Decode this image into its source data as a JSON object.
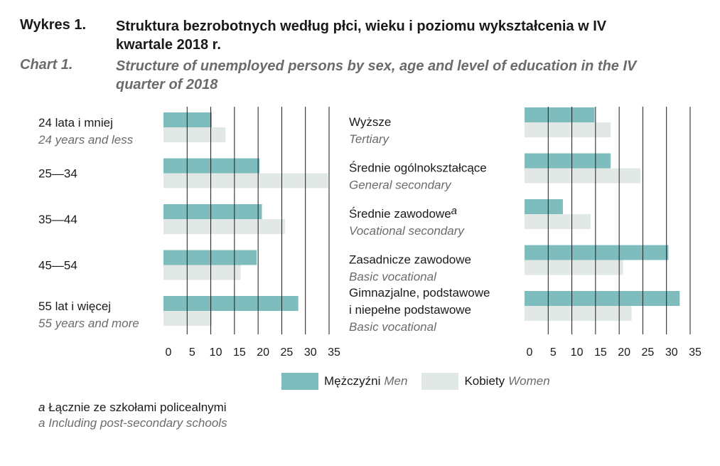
{
  "header": {
    "label_pl": "Wykres 1.",
    "title_pl": "Struktura bezrobotnych według płci, wieku i poziomu wykształcenia w IV kwartale 2018 r.",
    "label_en": "Chart 1.",
    "title_en": "Structure of unemployed persons by sex, age and level of education in the IV quarter of 2018"
  },
  "colors": {
    "men": "#7fbcbe",
    "women": "#e2e8e6",
    "grid": "#1a1a1a"
  },
  "chart_data": [
    {
      "type": "bar",
      "orientation": "horizontal",
      "categories": [
        {
          "pl": "24 lata i mniej",
          "en": "24 years and less"
        },
        {
          "pl": "25—34",
          "en": ""
        },
        {
          "pl": "35—44",
          "en": ""
        },
        {
          "pl": "45—54",
          "en": ""
        },
        {
          "pl": "55 lat i więcej",
          "en": "55 years and more"
        }
      ],
      "series": [
        {
          "name": "Mężczyźni Men",
          "values": [
            10.2,
            20.3,
            20.8,
            19.7,
            28.5
          ]
        },
        {
          "name": "Kobiety Women",
          "values": [
            13.1,
            34.8,
            25.7,
            16.3,
            10.2
          ]
        }
      ],
      "xlim": [
        0,
        35
      ],
      "xticks": [
        "0",
        "5",
        "10",
        "15",
        "20",
        "25",
        "30",
        "35"
      ],
      "grid": true
    },
    {
      "type": "bar",
      "orientation": "horizontal",
      "categories": [
        {
          "pl": "Wyższe",
          "en": "Tertiary"
        },
        {
          "pl": "Średnie ogólnokształcące",
          "en": "General secondary"
        },
        {
          "pl": "Średnie zawodowe",
          "sup": "a",
          "en": "Vocational secondary"
        },
        {
          "pl": "Zasadnicze zawodowe",
          "en": "Basic vocational"
        },
        {
          "pl": "Gimnazjalne, podstawowe i niepełne podstawowe",
          "en": "Basic vocational"
        }
      ],
      "series": [
        {
          "name": "Mężczyźni Men",
          "values": [
            14.8,
            18.2,
            8.1,
            30.4,
            32.8
          ]
        },
        {
          "name": "Kobiety Women",
          "values": [
            18.2,
            24.5,
            14.0,
            20.8,
            22.6
          ]
        }
      ],
      "xlim": [
        0,
        35
      ],
      "xticks": [
        "0",
        "5",
        "10",
        "15",
        "20",
        "25",
        "30",
        "35"
      ],
      "grid": true
    }
  ],
  "legend": [
    {
      "pl": "Mężczyźni",
      "en": "Men"
    },
    {
      "pl": "Kobiety",
      "en": "Women"
    }
  ],
  "footnote": {
    "marker": "a",
    "pl": "Łącznie ze szkołami policealnymi",
    "en": "Including post-secondary schools"
  }
}
